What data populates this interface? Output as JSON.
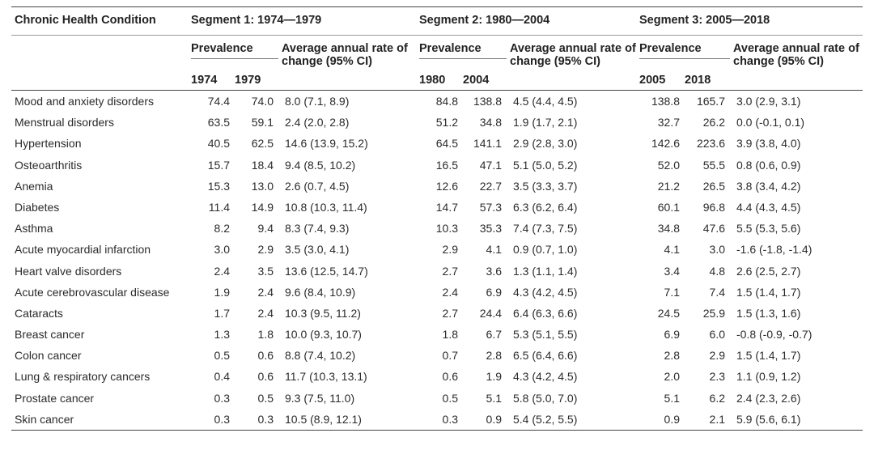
{
  "headers": {
    "condition": "Chronic Health Condition",
    "segment1": "Segment 1: 1974—1979",
    "segment2": "Segment 2: 1980—2004",
    "segment3": "Segment 3: 2005—2018",
    "prevalence": "Prevalence",
    "rate": "Average annual rate of change (95% CI)",
    "years": [
      "1974",
      "1979",
      "1980",
      "2004",
      "2005",
      "2018"
    ]
  },
  "rows": [
    {
      "name": "Mood and anxiety disorders",
      "v": [
        "74.4",
        "74.0",
        "8.0 (7.1, 8.9)",
        "84.8",
        "138.8",
        "4.5 (4.4, 4.5)",
        "138.8",
        "165.7",
        "3.0 (2.9, 3.1)"
      ]
    },
    {
      "name": "Menstrual disorders",
      "v": [
        "63.5",
        "59.1",
        "2.4 (2.0, 2.8)",
        "51.2",
        "34.8",
        "1.9 (1.7, 2.1)",
        "32.7",
        "26.2",
        "0.0 (-0.1, 0.1)"
      ]
    },
    {
      "name": "Hypertension",
      "v": [
        "40.5",
        "62.5",
        "14.6 (13.9, 15.2)",
        "64.5",
        "141.1",
        "2.9 (2.8, 3.0)",
        "142.6",
        "223.6",
        "3.9 (3.8, 4.0)"
      ]
    },
    {
      "name": "Osteoarthritis",
      "v": [
        "15.7",
        "18.4",
        "9.4 (8.5, 10.2)",
        "16.5",
        "47.1",
        "5.1 (5.0, 5.2)",
        "52.0",
        "55.5",
        "0.8 (0.6, 0.9)"
      ]
    },
    {
      "name": "Anemia",
      "v": [
        "15.3",
        "13.0",
        "2.6 (0.7, 4.5)",
        "12.6",
        "22.7",
        "3.5 (3.3, 3.7)",
        "21.2",
        "26.5",
        "3.8 (3.4, 4.2)"
      ]
    },
    {
      "name": "Diabetes",
      "v": [
        "11.4",
        "14.9",
        "10.8 (10.3, 11.4)",
        "14.7",
        "57.3",
        "6.3 (6.2, 6.4)",
        "60.1",
        "96.8",
        "4.4 (4.3, 4.5)"
      ]
    },
    {
      "name": "Asthma",
      "v": [
        "8.2",
        "9.4",
        "8.3 (7.4, 9.3)",
        "10.3",
        "35.3",
        "7.4 (7.3, 7.5)",
        "34.8",
        "47.6",
        "5.5 (5.3, 5.6)"
      ]
    },
    {
      "name": "Acute myocardial infarction",
      "v": [
        "3.0",
        "2.9",
        "3.5 (3.0, 4.1)",
        "2.9",
        "4.1",
        "0.9 (0.7, 1.0)",
        "4.1",
        "3.0",
        "-1.6 (-1.8, -1.4)"
      ]
    },
    {
      "name": "Heart valve disorders",
      "v": [
        "2.4",
        "3.5",
        "13.6 (12.5, 14.7)",
        "2.7",
        "3.6",
        "1.3 (1.1, 1.4)",
        "3.4",
        "4.8",
        "2.6 (2.5, 2.7)"
      ]
    },
    {
      "name": "Acute cerebrovascular disease",
      "v": [
        "1.9",
        "2.4",
        "9.6 (8.4, 10.9)",
        "2.4",
        "6.9",
        "4.3 (4.2, 4.5)",
        "7.1",
        "7.4",
        "1.5 (1.4, 1.7)"
      ]
    },
    {
      "name": "Cataracts",
      "v": [
        "1.7",
        "2.4",
        "10.3 (9.5, 11.2)",
        "2.7",
        "24.4",
        "6.4 (6.3, 6.6)",
        "24.5",
        "25.9",
        "1.5 (1.3, 1.6)"
      ]
    },
    {
      "name": "Breast cancer",
      "v": [
        "1.3",
        "1.8",
        "10.0 (9.3, 10.7)",
        "1.8",
        "6.7",
        "5.3 (5.1, 5.5)",
        "6.9",
        "6.0",
        "-0.8 (-0.9, -0.7)"
      ]
    },
    {
      "name": "Colon cancer",
      "v": [
        "0.5",
        "0.6",
        "8.8 (7.4, 10.2)",
        "0.7",
        "2.8",
        "6.5 (6.4, 6.6)",
        "2.8",
        "2.9",
        "1.5 (1.4, 1.7)"
      ]
    },
    {
      "name": "Lung & respiratory cancers",
      "v": [
        "0.4",
        "0.6",
        "11.7 (10.3, 13.1)",
        "0.6",
        "1.9",
        "4.3 (4.2, 4.5)",
        "2.0",
        "2.3",
        "1.1 (0.9, 1.2)"
      ]
    },
    {
      "name": "Prostate cancer",
      "v": [
        "0.3",
        "0.5",
        "9.3 (7.5, 11.0)",
        "0.5",
        "5.1",
        "5.8 (5.0, 7.0)",
        "5.1",
        "6.2",
        "2.4 (2.3, 2.6)"
      ]
    },
    {
      "name": "Skin cancer",
      "v": [
        "0.3",
        "0.3",
        "10.5 (8.9, 12.1)",
        "0.3",
        "0.9",
        "5.4 (5.2, 5.5)",
        "0.9",
        "2.1",
        "5.9 (5.6, 6.1)"
      ]
    }
  ]
}
